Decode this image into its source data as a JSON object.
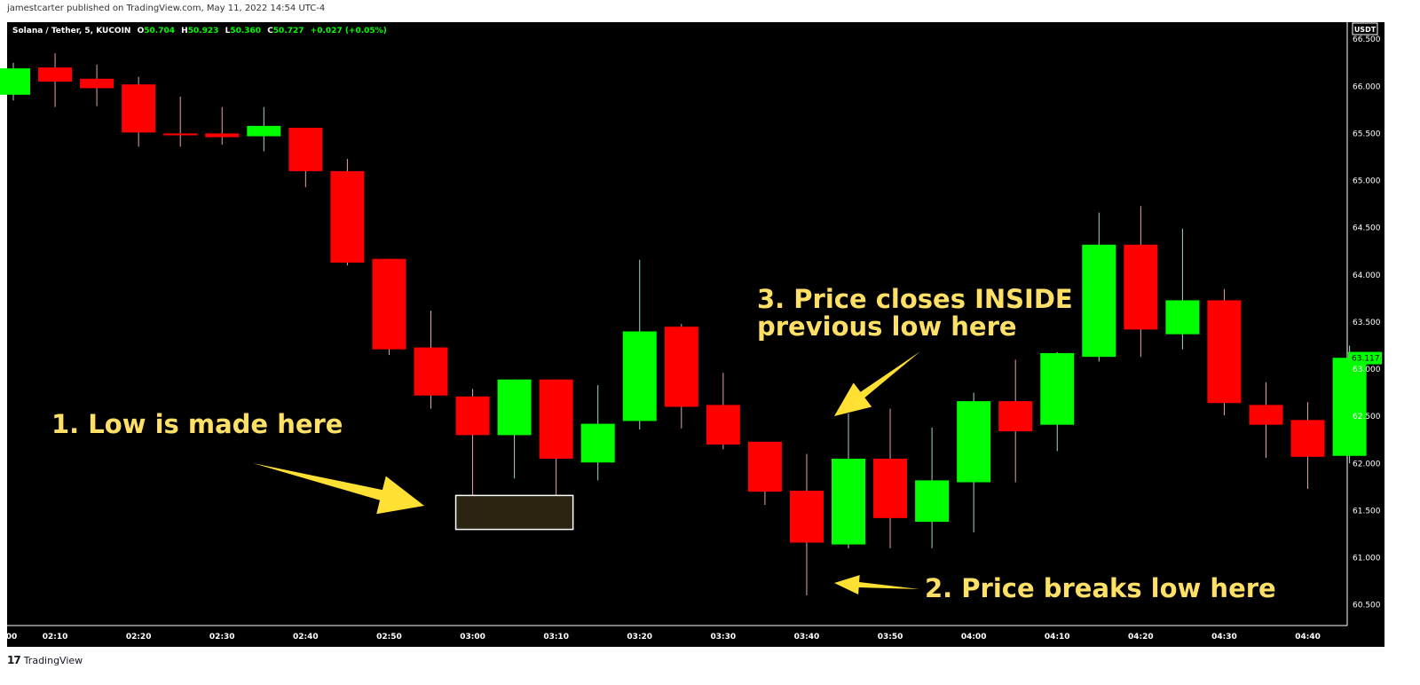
{
  "header": {
    "published": "jamestcarter published on TradingView.com, May 11, 2022 14:54 UTC-4"
  },
  "legend": {
    "symbol": "Solana / Tether, 5, KUCOIN",
    "o_label": "O",
    "o_value": "50.704",
    "h_label": "H",
    "h_value": "50.923",
    "l_label": "L",
    "l_value": "50.360",
    "c_label": "C",
    "c_value": "50.727",
    "change": "+0.027 (+0.05%)"
  },
  "currency_badge": "USDT",
  "last_price_label": "63.117",
  "colors": {
    "up": "#00ff00",
    "down": "#ff0000",
    "background": "#000000",
    "annotation": "#ffe066",
    "arrow": "#ffe033"
  },
  "annotations": {
    "a1": "1.  Low is made here",
    "a2": "2.  Price breaks low here",
    "a3_line1": "3.  Price closes INSIDE",
    "a3_line2": "previous low here"
  },
  "footer": {
    "brand": "TradingView",
    "logo_glyph": "17"
  },
  "chart_data": {
    "type": "candlestick",
    "interval": "5",
    "x_tick_labels": [
      "00",
      "02:10",
      "02:20",
      "02:30",
      "02:40",
      "02:50",
      "03:00",
      "03:10",
      "03:20",
      "03:30",
      "03:40",
      "03:50",
      "04:00",
      "04:10",
      "04:20",
      "04:30",
      "04:40"
    ],
    "y_ticks": [
      "60.500",
      "61.000",
      "61.500",
      "62.000",
      "62.500",
      "63.000",
      "63.500",
      "64.000",
      "64.500",
      "65.000",
      "65.500",
      "66.000",
      "66.500"
    ],
    "ylim": [
      60.28,
      66.68
    ],
    "candles": [
      {
        "o": 65.91,
        "h": 66.25,
        "l": 65.85,
        "c": 66.19
      },
      {
        "o": 66.2,
        "h": 66.35,
        "l": 65.78,
        "c": 66.05
      },
      {
        "o": 66.08,
        "h": 66.23,
        "l": 65.79,
        "c": 65.98
      },
      {
        "o": 66.02,
        "h": 66.1,
        "l": 65.36,
        "c": 65.51
      },
      {
        "o": 65.5,
        "h": 65.89,
        "l": 65.36,
        "c": 65.48
      },
      {
        "o": 65.5,
        "h": 65.78,
        "l": 65.38,
        "c": 65.46
      },
      {
        "o": 65.47,
        "h": 65.78,
        "l": 65.31,
        "c": 65.58
      },
      {
        "o": 65.56,
        "h": 65.56,
        "l": 64.93,
        "c": 65.1
      },
      {
        "o": 65.1,
        "h": 65.23,
        "l": 64.1,
        "c": 64.13
      },
      {
        "o": 64.17,
        "h": 64.17,
        "l": 63.15,
        "c": 63.21
      },
      {
        "o": 63.23,
        "h": 63.62,
        "l": 62.58,
        "c": 62.72
      },
      {
        "o": 62.71,
        "h": 62.79,
        "l": 61.45,
        "c": 62.3
      },
      {
        "o": 62.3,
        "h": 62.89,
        "l": 61.84,
        "c": 62.89
      },
      {
        "o": 62.89,
        "h": 62.89,
        "l": 61.44,
        "c": 62.05
      },
      {
        "o": 62.01,
        "h": 62.83,
        "l": 61.82,
        "c": 62.42
      },
      {
        "o": 62.45,
        "h": 64.16,
        "l": 62.36,
        "c": 63.4
      },
      {
        "o": 63.45,
        "h": 63.48,
        "l": 62.37,
        "c": 62.6
      },
      {
        "o": 62.62,
        "h": 62.96,
        "l": 62.15,
        "c": 62.2
      },
      {
        "o": 62.23,
        "h": 62.23,
        "l": 61.56,
        "c": 61.7
      },
      {
        "o": 61.71,
        "h": 62.1,
        "l": 60.6,
        "c": 61.16
      },
      {
        "o": 61.14,
        "h": 62.53,
        "l": 61.1,
        "c": 62.05
      },
      {
        "o": 62.05,
        "h": 62.58,
        "l": 61.1,
        "c": 61.42
      },
      {
        "o": 61.38,
        "h": 62.38,
        "l": 61.1,
        "c": 61.82
      },
      {
        "o": 61.8,
        "h": 62.75,
        "l": 61.27,
        "c": 62.66
      },
      {
        "o": 62.66,
        "h": 63.1,
        "l": 61.8,
        "c": 62.34
      },
      {
        "o": 62.41,
        "h": 63.18,
        "l": 62.13,
        "c": 63.17
      },
      {
        "o": 63.13,
        "h": 64.66,
        "l": 63.08,
        "c": 64.32
      },
      {
        "o": 64.32,
        "h": 64.73,
        "l": 63.13,
        "c": 63.42
      },
      {
        "o": 63.37,
        "h": 64.49,
        "l": 63.21,
        "c": 63.73
      },
      {
        "o": 63.73,
        "h": 63.85,
        "l": 62.51,
        "c": 62.64
      },
      {
        "o": 62.62,
        "h": 62.86,
        "l": 62.06,
        "c": 62.41
      },
      {
        "o": 62.46,
        "h": 62.65,
        "l": 61.73,
        "c": 62.07
      },
      {
        "o": 62.08,
        "h": 63.25,
        "l": 62.0,
        "c": 63.12
      }
    ],
    "highlight_box": {
      "price_top": 61.66,
      "price_bottom": 61.3,
      "from_candle": 11,
      "to_candle": 13
    },
    "last_price": 63.117
  }
}
